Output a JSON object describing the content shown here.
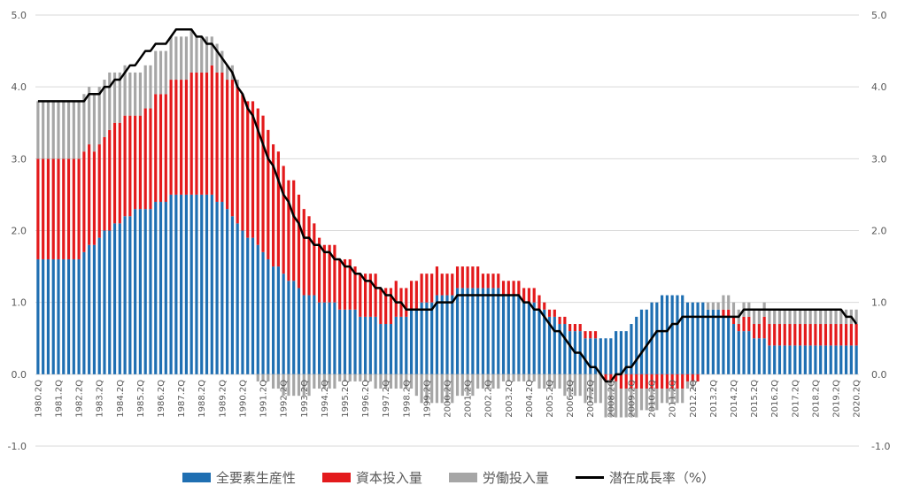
{
  "chart_data": {
    "type": "bar",
    "stacked": true,
    "x_tick_labels": [
      "1980.2Q",
      "1981.2Q",
      "1982.2Q",
      "1983.2Q",
      "1984.2Q",
      "1985.2Q",
      "1986.2Q",
      "1987.2Q",
      "1988.2Q",
      "1989.2Q",
      "1990.2Q",
      "1991.2Q",
      "1992.2Q",
      "1993.2Q",
      "1994.2Q",
      "1995.2Q",
      "1996.2Q",
      "1997.2Q",
      "1998.2Q",
      "1999.2Q",
      "2000.2Q",
      "2001.2Q",
      "2002.2Q",
      "2003.2Q",
      "2004.2Q",
      "2005.2Q",
      "2006.2Q",
      "2007.2Q",
      "2008.2Q",
      "2009.2Q",
      "2010.2Q",
      "2011.2Q",
      "2012.2Q",
      "2013.2Q",
      "2014.2Q",
      "2015.2Q",
      "2016.2Q",
      "2017.2Q",
      "2018.2Q",
      "2019.2Q",
      "2020.2Q"
    ],
    "y_ticks": [
      "5.0",
      "4.0",
      "3.0",
      "2.0",
      "1.0",
      "0.0",
      "-1.0"
    ],
    "ylim": [
      -1.0,
      5.0
    ],
    "yticks_both_sides": true,
    "grid": true,
    "legend_position": "bottom",
    "colors": {
      "tfp": "#1F6FB2",
      "capital": "#E31A1C",
      "labor": "#A6A6A6",
      "potential": "#000000"
    },
    "anchors": {
      "tfp": [
        [
          0,
          1.6
        ],
        [
          8,
          1.6
        ],
        [
          12,
          1.9
        ],
        [
          16,
          2.1
        ],
        [
          20,
          2.3
        ],
        [
          24,
          2.4
        ],
        [
          28,
          2.5
        ],
        [
          32,
          2.5
        ],
        [
          36,
          2.4
        ],
        [
          40,
          2.0
        ],
        [
          44,
          1.7
        ],
        [
          48,
          1.4
        ],
        [
          52,
          1.1
        ],
        [
          56,
          1.0
        ],
        [
          60,
          0.9
        ],
        [
          64,
          0.8
        ],
        [
          68,
          0.7
        ],
        [
          72,
          0.8
        ],
        [
          76,
          1.0
        ],
        [
          80,
          1.1
        ],
        [
          84,
          1.2
        ],
        [
          88,
          1.2
        ],
        [
          92,
          1.1
        ],
        [
          96,
          1.0
        ],
        [
          100,
          0.8
        ],
        [
          104,
          0.6
        ],
        [
          108,
          0.5
        ],
        [
          112,
          0.5
        ],
        [
          116,
          0.7
        ],
        [
          120,
          1.0
        ],
        [
          124,
          1.1
        ],
        [
          128,
          1.0
        ],
        [
          132,
          0.9
        ],
        [
          136,
          0.7
        ],
        [
          140,
          0.5
        ],
        [
          144,
          0.4
        ],
        [
          148,
          0.4
        ],
        [
          152,
          0.4
        ],
        [
          156,
          0.4
        ],
        [
          160,
          0.4
        ]
      ],
      "capital": [
        [
          0,
          1.4
        ],
        [
          8,
          1.4
        ],
        [
          12,
          1.3
        ],
        [
          16,
          1.4
        ],
        [
          20,
          1.3
        ],
        [
          24,
          1.5
        ],
        [
          28,
          1.6
        ],
        [
          32,
          1.7
        ],
        [
          36,
          1.8
        ],
        [
          40,
          1.9
        ],
        [
          44,
          1.9
        ],
        [
          48,
          1.5
        ],
        [
          52,
          1.2
        ],
        [
          56,
          0.8
        ],
        [
          60,
          0.7
        ],
        [
          64,
          0.6
        ],
        [
          68,
          0.5
        ],
        [
          72,
          0.4
        ],
        [
          76,
          0.4
        ],
        [
          80,
          0.3
        ],
        [
          84,
          0.3
        ],
        [
          88,
          0.2
        ],
        [
          92,
          0.2
        ],
        [
          96,
          0.2
        ],
        [
          100,
          0.1
        ],
        [
          104,
          0.1
        ],
        [
          108,
          0.1
        ],
        [
          112,
          -0.1
        ],
        [
          116,
          -0.2
        ],
        [
          120,
          -0.2
        ],
        [
          124,
          -0.2
        ],
        [
          128,
          -0.1
        ],
        [
          132,
          0.0
        ],
        [
          136,
          0.1
        ],
        [
          140,
          0.2
        ],
        [
          144,
          0.3
        ],
        [
          148,
          0.3
        ],
        [
          152,
          0.3
        ],
        [
          156,
          0.3
        ],
        [
          160,
          0.3
        ]
      ],
      "labor": [
        [
          0,
          0.8
        ],
        [
          8,
          0.8
        ],
        [
          12,
          0.8
        ],
        [
          16,
          0.7
        ],
        [
          20,
          0.6
        ],
        [
          24,
          0.6
        ],
        [
          28,
          0.6
        ],
        [
          32,
          0.5
        ],
        [
          36,
          0.3
        ],
        [
          40,
          0.0
        ],
        [
          44,
          -0.1
        ],
        [
          48,
          -0.3
        ],
        [
          52,
          -0.3
        ],
        [
          56,
          -0.2
        ],
        [
          60,
          -0.1
        ],
        [
          64,
          -0.1
        ],
        [
          68,
          -0.2
        ],
        [
          72,
          -0.2
        ],
        [
          76,
          -0.4
        ],
        [
          80,
          -0.4
        ],
        [
          84,
          -0.3
        ],
        [
          88,
          -0.2
        ],
        [
          92,
          -0.1
        ],
        [
          96,
          -0.1
        ],
        [
          100,
          -0.2
        ],
        [
          104,
          -0.3
        ],
        [
          108,
          -0.4
        ],
        [
          112,
          -0.5
        ],
        [
          116,
          -0.4
        ],
        [
          120,
          -0.3
        ],
        [
          124,
          -0.2
        ],
        [
          128,
          -0.1
        ],
        [
          132,
          0.1
        ],
        [
          136,
          0.2
        ],
        [
          140,
          0.2
        ],
        [
          144,
          0.2
        ],
        [
          148,
          0.2
        ],
        [
          152,
          0.2
        ],
        [
          156,
          0.2
        ],
        [
          160,
          0.2
        ]
      ],
      "potential": [
        [
          0,
          3.8
        ],
        [
          8,
          3.8
        ],
        [
          12,
          3.9
        ],
        [
          16,
          4.1
        ],
        [
          20,
          4.4
        ],
        [
          24,
          4.6
        ],
        [
          28,
          4.8
        ],
        [
          32,
          4.7
        ],
        [
          36,
          4.4
        ],
        [
          40,
          3.9
        ],
        [
          44,
          3.2
        ],
        [
          48,
          2.5
        ],
        [
          52,
          1.9
        ],
        [
          56,
          1.7
        ],
        [
          60,
          1.5
        ],
        [
          64,
          1.3
        ],
        [
          68,
          1.1
        ],
        [
          72,
          0.9
        ],
        [
          76,
          0.9
        ],
        [
          80,
          1.0
        ],
        [
          84,
          1.1
        ],
        [
          88,
          1.1
        ],
        [
          92,
          1.1
        ],
        [
          96,
          1.0
        ],
        [
          100,
          0.7
        ],
        [
          104,
          0.4
        ],
        [
          108,
          0.1
        ],
        [
          112,
          -0.1
        ],
        [
          116,
          0.1
        ],
        [
          120,
          0.5
        ],
        [
          124,
          0.7
        ],
        [
          128,
          0.8
        ],
        [
          132,
          0.8
        ],
        [
          136,
          0.8
        ],
        [
          140,
          0.9
        ],
        [
          144,
          0.9
        ],
        [
          148,
          0.9
        ],
        [
          152,
          0.9
        ],
        [
          156,
          0.9
        ],
        [
          160,
          0.7
        ]
      ]
    },
    "series": [
      {
        "key": "tfp",
        "name": "全要素生産性"
      },
      {
        "key": "capital",
        "name": "資本投入量"
      },
      {
        "key": "labor",
        "name": "労働投入量"
      },
      {
        "key": "potential",
        "name": "潜在成長率（%）"
      }
    ]
  }
}
